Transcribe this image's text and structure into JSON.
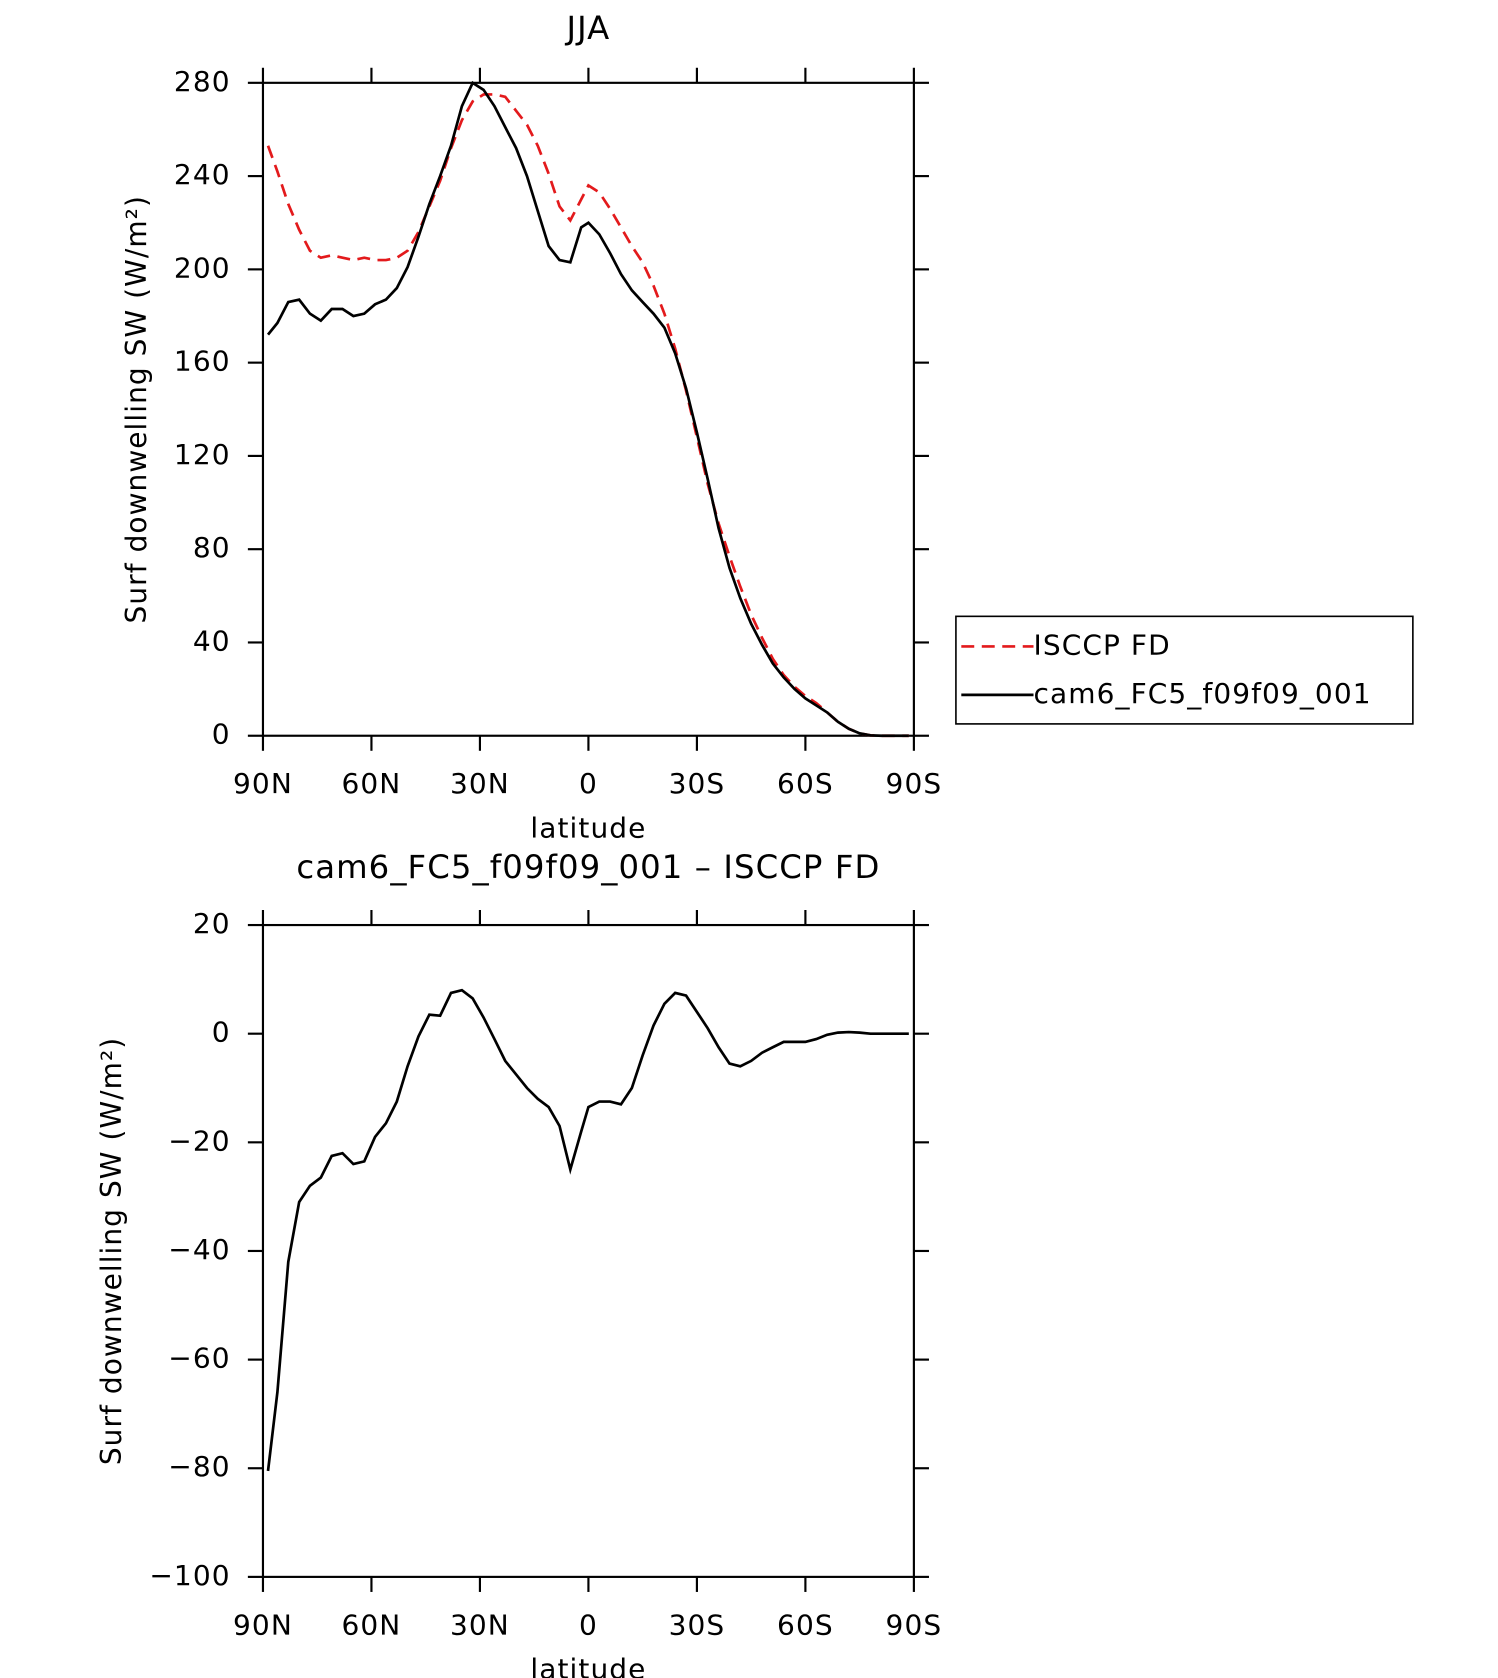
{
  "chart_data": [
    {
      "type": "line",
      "title": "JJA",
      "xlabel": "latitude",
      "ylabel": "Surf downwelling SW (W/m²)",
      "x": [
        88.6,
        86,
        83,
        80,
        77,
        74,
        71,
        68,
        65,
        62,
        59,
        56,
        53,
        50,
        47,
        44,
        41,
        38,
        35,
        32,
        29,
        26,
        23,
        20,
        17,
        14,
        11,
        8,
        5,
        2,
        0,
        -3,
        -6,
        -9,
        -12,
        -15,
        -18,
        -21,
        -24,
        -27,
        -30,
        -33,
        -36,
        -39,
        -42,
        -45,
        -48,
        -51,
        -54,
        -57,
        -60,
        -63,
        -66,
        -69,
        -72,
        -75,
        -78,
        -81,
        -84,
        -87,
        -88.6
      ],
      "xlim": [
        90,
        -90
      ],
      "xticks": [
        {
          "value": 90,
          "label": "90N"
        },
        {
          "value": 60,
          "label": "60N"
        },
        {
          "value": 30,
          "label": "30N"
        },
        0,
        {
          "value": -30,
          "label": "30S"
        },
        {
          "value": -60,
          "label": "60S"
        },
        {
          "value": -90,
          "label": "90S"
        }
      ],
      "ylim": [
        0,
        280
      ],
      "yticks": [
        0,
        40,
        80,
        120,
        160,
        200,
        240,
        280
      ],
      "legend": "right",
      "series": [
        {
          "name": "ISCCP FD",
          "color": "#e31a1c",
          "line_style": "dashed",
          "values": [
            253,
            242,
            228,
            217,
            208,
            205,
            206,
            205,
            204,
            205,
            204,
            204,
            205,
            208,
            216,
            227,
            238,
            252,
            264,
            272,
            275,
            275,
            274,
            268,
            262,
            253,
            241,
            227,
            221,
            230,
            236,
            233,
            226,
            218,
            210,
            203,
            193,
            181,
            166,
            148,
            128,
            108,
            91,
            77,
            64,
            52,
            42,
            33,
            26,
            21,
            17,
            14,
            10,
            6,
            3,
            1,
            0.2,
            0,
            0,
            0,
            0
          ]
        },
        {
          "name": "cam6_FC5_f09f09_001",
          "color": "#000000",
          "line_style": "solid",
          "values": [
            172,
            177,
            186,
            187,
            181,
            178,
            183,
            183,
            180,
            181,
            185,
            187,
            192,
            201,
            214,
            228,
            240,
            253,
            270,
            280,
            277,
            270,
            261,
            252,
            240,
            225,
            210,
            204,
            203,
            218,
            220,
            215,
            207,
            198,
            191,
            186,
            181,
            175,
            164,
            149,
            130,
            110,
            89,
            72,
            59,
            48,
            39,
            31,
            25,
            20,
            16,
            13,
            10,
            6,
            3,
            1,
            0.2,
            0,
            0,
            0,
            0
          ]
        }
      ]
    },
    {
      "type": "line",
      "title": "cam6_FC5_f09f09_001 – ISCCP FD",
      "xlabel": "latitude",
      "ylabel": "Surf downwelling SW (W/m²)",
      "x": [
        88.6,
        86,
        83,
        80,
        77,
        74,
        71,
        68,
        65,
        62,
        59,
        56,
        53,
        50,
        47,
        44,
        41,
        38,
        35,
        32,
        29,
        26,
        23,
        20,
        17,
        14,
        11,
        8,
        5,
        2,
        0,
        -3,
        -6,
        -9,
        -12,
        -15,
        -18,
        -21,
        -24,
        -27,
        -30,
        -33,
        -36,
        -39,
        -42,
        -45,
        -48,
        -51,
        -54,
        -57,
        -60,
        -63,
        -66,
        -69,
        -72,
        -75,
        -78,
        -81,
        -84,
        -87,
        -88.6
      ],
      "xlim": [
        90,
        -90
      ],
      "xticks": [
        {
          "value": 90,
          "label": "90N"
        },
        {
          "value": 60,
          "label": "60N"
        },
        {
          "value": 30,
          "label": "30N"
        },
        0,
        {
          "value": -30,
          "label": "30S"
        },
        {
          "value": -60,
          "label": "60S"
        },
        {
          "value": -90,
          "label": "90S"
        }
      ],
      "ylim": [
        -100,
        20
      ],
      "yticks": [
        {
          "value": -100,
          "label": "−100"
        },
        {
          "value": -80,
          "label": "−80"
        },
        {
          "value": -60,
          "label": "−60"
        },
        {
          "value": -40,
          "label": "−40"
        },
        {
          "value": -20,
          "label": "−20"
        },
        0,
        20
      ],
      "series": [
        {
          "color": "#000000",
          "line_style": "solid",
          "values": [
            -80.5,
            -66,
            -42,
            -31,
            -28,
            -26.5,
            -22.5,
            -22,
            -24,
            -23.5,
            -19,
            -16.5,
            -12.5,
            -6,
            -0.5,
            3.5,
            3.3,
            7.5,
            8,
            6.5,
            3,
            -1,
            -5,
            -7.5,
            -10,
            -12,
            -13.5,
            -17,
            -25,
            -18,
            -13.5,
            -12.5,
            -12.5,
            -13,
            -10,
            -4,
            1.5,
            5.5,
            7.5,
            7,
            4,
            1,
            -2.5,
            -5.5,
            -6,
            -5,
            -3.5,
            -2.5,
            -1.5,
            -1.5,
            -1.5,
            -1,
            -0.2,
            0.2,
            0.3,
            0.2,
            0,
            0,
            0,
            0,
            0
          ]
        }
      ]
    }
  ]
}
